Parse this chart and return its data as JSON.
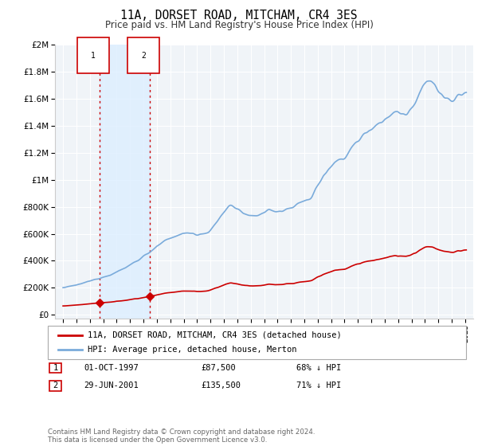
{
  "title": "11A, DORSET ROAD, MITCHAM, CR4 3ES",
  "subtitle": "Price paid vs. HM Land Registry's House Price Index (HPI)",
  "hpi_label": "HPI: Average price, detached house, Merton",
  "property_label": "11A, DORSET ROAD, MITCHAM, CR4 3ES (detached house)",
  "hpi_color": "#7aabdb",
  "property_color": "#cc0000",
  "vline_color": "#cc0000",
  "transaction1_date": "01-OCT-1997",
  "transaction1_price": 87500,
  "transaction1_pct": "68% ↓ HPI",
  "transaction1_year": 1997.75,
  "transaction2_date": "29-JUN-2001",
  "transaction2_price": 135500,
  "transaction2_pct": "71% ↓ HPI",
  "transaction2_year": 2001.5,
  "footer": "Contains HM Land Registry data © Crown copyright and database right 2024.\nThis data is licensed under the Open Government Licence v3.0.",
  "ylim_max": 2000000,
  "background_plot": "#f0f4f8",
  "background_fig": "#ffffff",
  "grid_color": "#ffffff",
  "shaded_color": "#ddeeff"
}
